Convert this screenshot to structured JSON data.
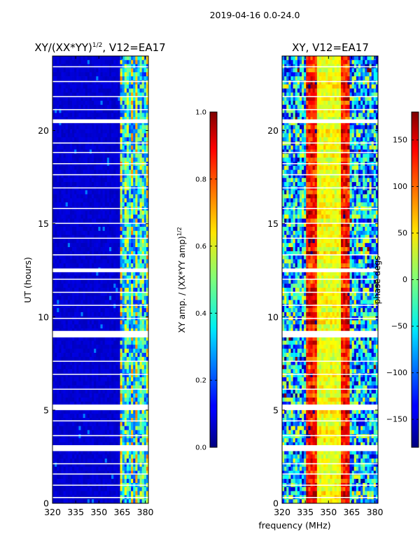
{
  "figure": {
    "suptitle": "2019-04-16 0.0-24.0",
    "xlabel": "frequency (MHz)"
  },
  "chart_data": [
    {
      "type": "heatmap",
      "id": "amp",
      "title_main": "XY/(XX*YY)",
      "title_sup": "1/2",
      "title_tail": ", V12=EA17",
      "ylabel": "UT (hours)",
      "xlim": [
        320,
        382
      ],
      "ylim": [
        0,
        24
      ],
      "xticks": [
        320,
        335,
        350,
        365,
        380
      ],
      "yticks": [
        0,
        5,
        10,
        15,
        20
      ],
      "colormap": "jet",
      "description_values": {
        "low_freq_region_value": 0.08,
        "high_freq_region_value_range": [
          0.3,
          0.8
        ],
        "high_freq_region_start_mhz": 363
      },
      "colorbar": {
        "label_main": "XY amp. / (XX*YY amp)",
        "label_sup": "1/2",
        "range": [
          0.0,
          1.0
        ],
        "ticks": [
          "0.0",
          "0.2",
          "0.4",
          "0.6",
          "0.8",
          "1.0"
        ]
      }
    },
    {
      "type": "heatmap",
      "id": "phase",
      "title_main": "XY, V12=EA17",
      "ylabel": "",
      "xlim": [
        320,
        382
      ],
      "ylim": [
        0,
        24
      ],
      "xticks": [
        320,
        335,
        350,
        365,
        380
      ],
      "yticks": [
        0,
        5,
        10,
        15,
        20
      ],
      "colormap": "jet",
      "description_values": {
        "central_band_center_mhz": 350,
        "central_band_phase_deg": 40,
        "edge_phase_deg": -60
      },
      "colorbar": {
        "label_main": "phase degs",
        "range": [
          -180,
          180
        ],
        "ticks": [
          "−150",
          "−100",
          "−50",
          "0",
          "50",
          "100",
          "150"
        ]
      }
    }
  ],
  "flagged_time_gaps_hours": [
    [
      0.28,
      0.34
    ],
    [
      0.95,
      1.0
    ],
    [
      1.55,
      1.6
    ],
    [
      2.1,
      2.15
    ],
    [
      2.8,
      3.12
    ],
    [
      3.6,
      3.66
    ],
    [
      4.4,
      4.45
    ],
    [
      5.0,
      5.3
    ],
    [
      6.1,
      6.15
    ],
    [
      6.9,
      6.95
    ],
    [
      7.6,
      7.65
    ],
    [
      8.9,
      9.25
    ],
    [
      9.9,
      9.95
    ],
    [
      10.6,
      10.65
    ],
    [
      11.3,
      11.35
    ],
    [
      12.0,
      12.05
    ],
    [
      12.4,
      12.6
    ],
    [
      13.3,
      13.36
    ],
    [
      14.2,
      14.25
    ],
    [
      15.0,
      15.05
    ],
    [
      15.8,
      15.85
    ],
    [
      16.9,
      16.95
    ],
    [
      17.6,
      17.66
    ],
    [
      18.2,
      18.25
    ],
    [
      18.8,
      18.85
    ],
    [
      19.3,
      19.36
    ],
    [
      20.4,
      20.6
    ],
    [
      21.1,
      21.15
    ],
    [
      21.8,
      21.85
    ],
    [
      22.6,
      22.66
    ],
    [
      23.4,
      23.45
    ]
  ]
}
